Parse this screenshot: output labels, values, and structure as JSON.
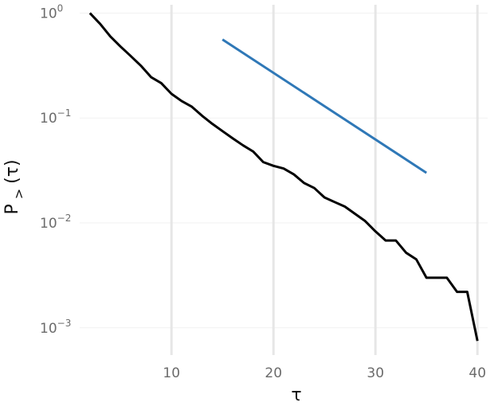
{
  "chart_data": {
    "type": "line",
    "title": "",
    "xlabel": "τ",
    "ylabel": {
      "main": "P",
      "sub": ">",
      "arg": "(τ)"
    },
    "y_scale": "log",
    "xlim": [
      1,
      41
    ],
    "ylim": [
      0.00055,
      1.2
    ],
    "x_ticks": [
      10,
      20,
      30,
      40
    ],
    "y_ticks": [
      {
        "value": 1,
        "base": "10",
        "exp": "0"
      },
      {
        "value": 0.1,
        "base": "10",
        "exp": "−1"
      },
      {
        "value": 0.01,
        "base": "10",
        "exp": "−2"
      },
      {
        "value": 0.001,
        "base": "10",
        "exp": "−3"
      }
    ],
    "grid": {
      "vertical_major": true,
      "horizontal_major": true
    },
    "legend": "none",
    "series": [
      {
        "color": "#000000",
        "points": [
          [
            2,
            1.0
          ],
          [
            3,
            0.79
          ],
          [
            4,
            0.6
          ],
          [
            5,
            0.48
          ],
          [
            6,
            0.39
          ],
          [
            7,
            0.315
          ],
          [
            8,
            0.245
          ],
          [
            9,
            0.215
          ],
          [
            10,
            0.17
          ],
          [
            11,
            0.145
          ],
          [
            12,
            0.128
          ],
          [
            13,
            0.105
          ],
          [
            14,
            0.088
          ],
          [
            15,
            0.075
          ],
          [
            16,
            0.064
          ],
          [
            17,
            0.055
          ],
          [
            18,
            0.048
          ],
          [
            19,
            0.038
          ],
          [
            20,
            0.035
          ],
          [
            21,
            0.033
          ],
          [
            22,
            0.029
          ],
          [
            23,
            0.024
          ],
          [
            24,
            0.0215
          ],
          [
            25,
            0.0175
          ],
          [
            26,
            0.0158
          ],
          [
            27,
            0.0143
          ],
          [
            28,
            0.0122
          ],
          [
            29,
            0.0104
          ],
          [
            30,
            0.0083
          ],
          [
            31,
            0.0068
          ],
          [
            32,
            0.0068
          ],
          [
            33,
            0.0052
          ],
          [
            34,
            0.0045
          ],
          [
            35,
            0.003
          ],
          [
            36,
            0.003
          ],
          [
            37,
            0.003
          ],
          [
            38,
            0.0022
          ],
          [
            39,
            0.0022
          ],
          [
            40,
            0.00075
          ]
        ]
      },
      {
        "color": "#2f78b7",
        "points": [
          [
            15,
            0.56
          ],
          [
            35,
            0.03
          ]
        ]
      }
    ]
  }
}
